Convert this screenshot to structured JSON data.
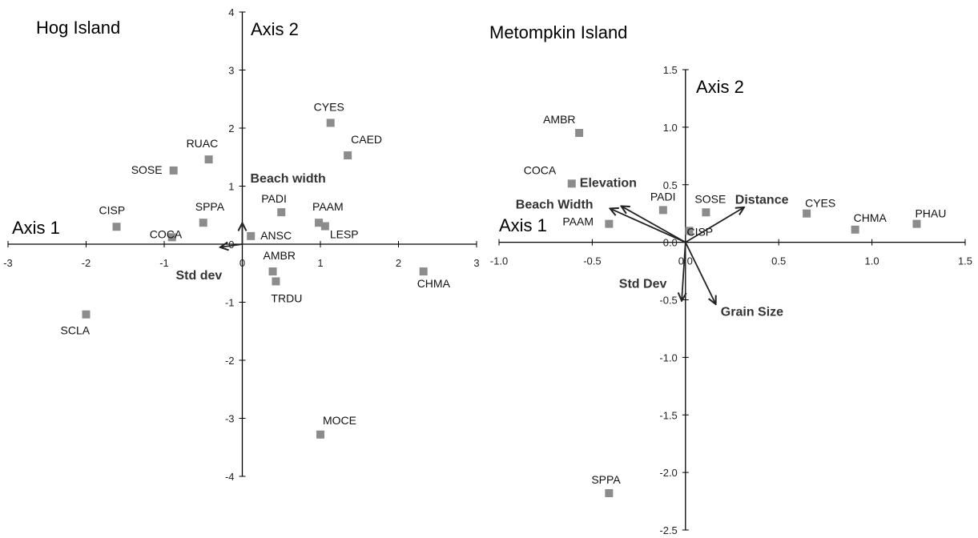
{
  "chart_data": [
    {
      "type": "scatter",
      "title": "Hog Island",
      "xlabel": "Axis 1",
      "ylabel": "Axis 2",
      "xlim": [
        -3,
        3
      ],
      "ylim": [
        -4,
        4
      ],
      "x_ticks": [
        "-3",
        "-2",
        "-1",
        "0",
        "1",
        "2",
        "3"
      ],
      "y_ticks": [
        "4",
        "3",
        "2",
        "1",
        "0",
        "-1",
        "-2",
        "-3",
        "-4"
      ],
      "grid": false,
      "points": [
        {
          "label": "CYES",
          "x": 1.13,
          "y": 2.09
        },
        {
          "label": "CAED",
          "x": 1.35,
          "y": 1.53
        },
        {
          "label": "RUAC",
          "x": -0.43,
          "y": 1.46
        },
        {
          "label": "SOSE",
          "x": -0.88,
          "y": 1.27
        },
        {
          "label": "PADI",
          "x": 0.5,
          "y": 0.55
        },
        {
          "label": "PAAM",
          "x": 0.98,
          "y": 0.37
        },
        {
          "label": "LESP",
          "x": 1.06,
          "y": 0.31
        },
        {
          "label": "SPPA",
          "x": -0.5,
          "y": 0.37
        },
        {
          "label": "CISP",
          "x": -1.61,
          "y": 0.3
        },
        {
          "label": "COCA",
          "x": -0.9,
          "y": 0.12
        },
        {
          "label": "ANSC",
          "x": 0.11,
          "y": 0.14
        },
        {
          "label": "AMBR",
          "x": 0.39,
          "y": -0.47
        },
        {
          "label": "TRDU",
          "x": 0.43,
          "y": -0.64
        },
        {
          "label": "CHMA",
          "x": 2.32,
          "y": -0.47
        },
        {
          "label": "SCLA",
          "x": -2.0,
          "y": -1.21
        },
        {
          "label": "MOCE",
          "x": 1.0,
          "y": -3.28
        }
      ],
      "vectors": [
        {
          "label": "Beach width",
          "x": 0.0,
          "y": 0.35
        },
        {
          "label": "Std dev",
          "x": -0.27,
          "y": -0.05
        }
      ]
    },
    {
      "type": "scatter",
      "title": "Metompkin Island",
      "xlabel": "Axis 1",
      "ylabel": "Axis 2",
      "xlim": [
        -1.0,
        1.5
      ],
      "ylim": [
        -2.5,
        1.5
      ],
      "x_ticks": [
        "-1.0",
        "-0.5",
        "0.0",
        "0.5",
        "1.0",
        "1.5"
      ],
      "y_ticks": [
        "1.5",
        "1.0",
        "0.5",
        "0.0",
        "-0.5",
        "-1.0",
        "-1.5",
        "-2.0",
        "-2.5"
      ],
      "grid": false,
      "points": [
        {
          "label": "AMBR",
          "x": -0.57,
          "y": 0.95
        },
        {
          "label": "COCA",
          "x": -0.61,
          "y": 0.51
        },
        {
          "label": "PADI",
          "x": -0.12,
          "y": 0.28
        },
        {
          "label": "SOSE",
          "x": 0.11,
          "y": 0.26
        },
        {
          "label": "CISP",
          "x": 0.02,
          "y": 0.1
        },
        {
          "label": "PAAM",
          "x": -0.41,
          "y": 0.16
        },
        {
          "label": "CYES",
          "x": 0.65,
          "y": 0.25
        },
        {
          "label": "CHMA",
          "x": 0.91,
          "y": 0.11
        },
        {
          "label": "PHAU",
          "x": 1.24,
          "y": 0.16
        },
        {
          "label": "SPPA",
          "x": -0.41,
          "y": -2.18
        }
      ],
      "vectors": [
        {
          "label": "Elevation",
          "x": -0.34,
          "y": 0.31
        },
        {
          "label": "Beach Width",
          "x": -0.4,
          "y": 0.29
        },
        {
          "label": "Distance",
          "x": 0.31,
          "y": 0.3
        },
        {
          "label": "Std Dev",
          "x": -0.02,
          "y": -0.5
        },
        {
          "label": "Grain Size",
          "x": 0.16,
          "y": -0.53
        }
      ]
    }
  ]
}
